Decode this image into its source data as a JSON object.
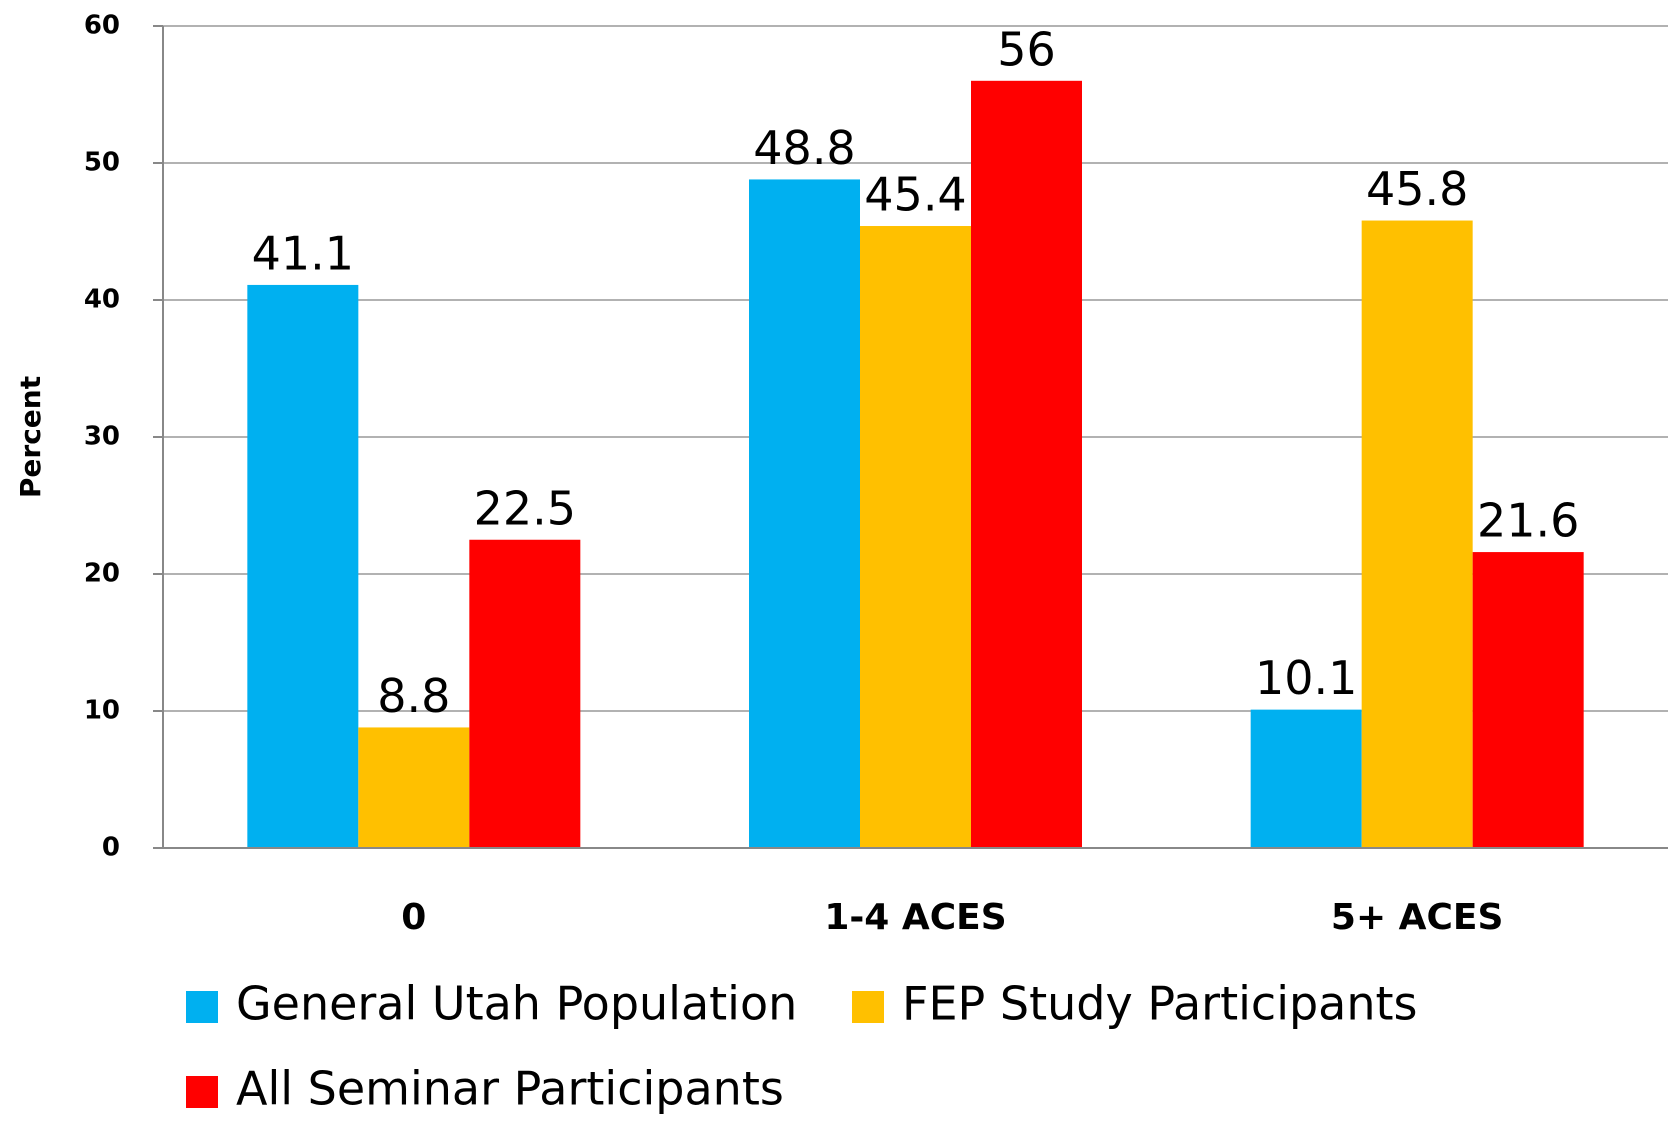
{
  "chart_data": {
    "type": "bar",
    "y_label": "Percent",
    "categories": [
      "0",
      "1-4 ACES",
      "5+ ACES"
    ],
    "series": [
      {
        "name": "General Utah Population",
        "color": "#00b0f0",
        "values": [
          41.1,
          48.8,
          10.1
        ]
      },
      {
        "name": "FEP Study Participants",
        "color": "#ffc000",
        "values": [
          8.8,
          45.4,
          45.8
        ]
      },
      {
        "name": "All Seminar Participants",
        "color": "#ff0000",
        "values": [
          22.5,
          56,
          21.6
        ]
      }
    ],
    "ylim": [
      0,
      60
    ],
    "yticks": [
      0,
      10,
      20,
      30,
      40,
      50,
      60
    ],
    "grid": true,
    "legend": "bottom"
  }
}
